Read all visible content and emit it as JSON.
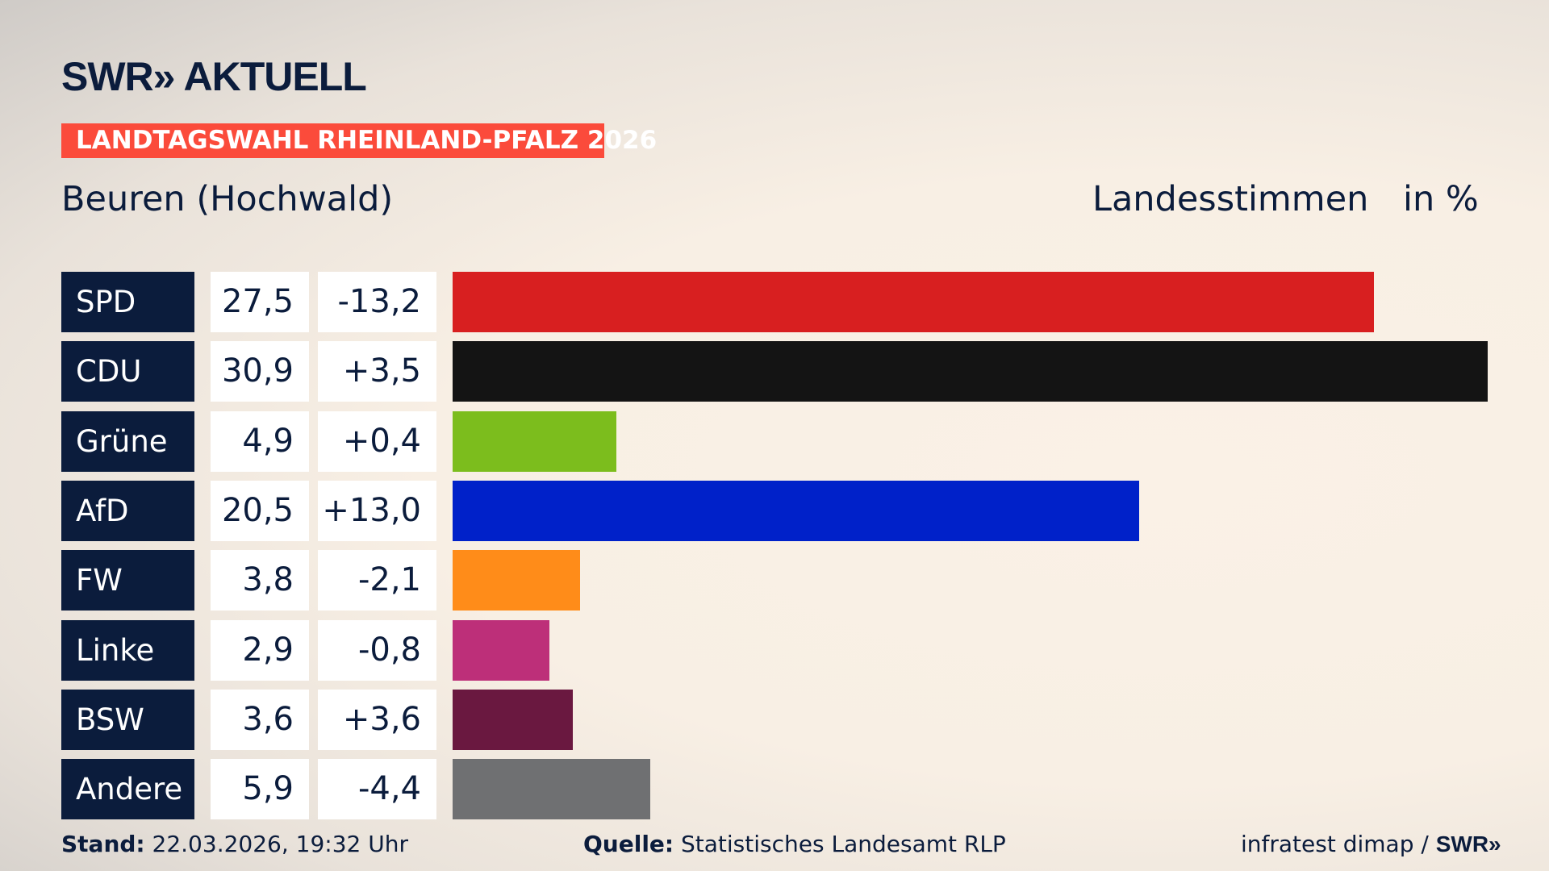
{
  "header": {
    "logo": "SWR» AKTUELL",
    "banner": "LANDTAGSWAHL RHEINLAND-PFALZ 2026",
    "place": "Beuren (Hochwald)",
    "label": "Landesstimmen",
    "unit": "in %"
  },
  "chart_data": {
    "type": "bar",
    "orientation": "horizontal",
    "xlim": [
      0,
      30.9
    ],
    "categories": [
      "SPD",
      "CDU",
      "Grüne",
      "AfD",
      "FW",
      "Linke",
      "BSW",
      "Andere"
    ],
    "values": [
      27.5,
      30.9,
      4.9,
      20.5,
      3.8,
      2.9,
      3.6,
      5.9
    ],
    "value_labels": [
      "27,5",
      "30,9",
      "4,9",
      "20,5",
      "3,8",
      "2,9",
      "3,6",
      "5,9"
    ],
    "diff_labels": [
      "-13,2",
      "+3,5",
      "+0,4",
      "+13,0",
      "-2,1",
      "-0,8",
      "+3,6",
      "-4,4"
    ],
    "colors": [
      "#d81f20",
      "#141414",
      "#7cbd1d",
      "#0021c9",
      "#ff8c19",
      "#bd2f79",
      "#6a1840",
      "#6f7072"
    ]
  },
  "footer": {
    "stand_label": "Stand:",
    "stand": "22.03.2026, 19:32 Uhr",
    "quelle_label": "Quelle:",
    "quelle": "Statistisches Landesamt RLP",
    "credit": "infratest dimap /",
    "credit_logo": "SWR»"
  }
}
